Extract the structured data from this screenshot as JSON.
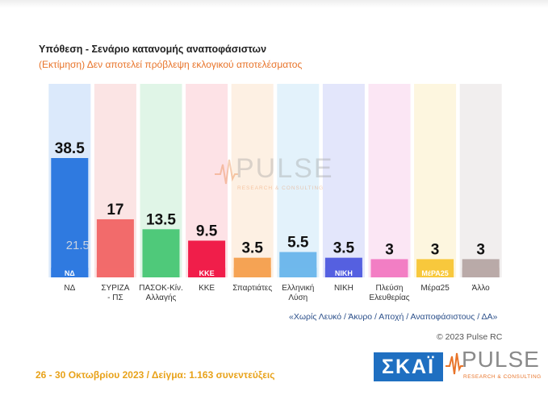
{
  "header": {
    "title": "Υπόθεση - Σενάριο κατανομής αναποφάσιστων",
    "subtitle": "(Εκτίμηση)   Δεν αποτελεί πρόβλεψη εκλογικού αποτελέσματος"
  },
  "chart_data": {
    "type": "bar",
    "categories": [
      "ΝΔ",
      "ΣΥΡΙΖΑ - ΠΣ",
      "ΠΑΣΟΚ-Κίν. Αλλαγής",
      "ΚΚΕ",
      "Σπαρτιάτες",
      "Ελληνική Λύση",
      "ΝΙΚΗ",
      "Πλεύση Ελευθερίας",
      "Μέρα25",
      "Άλλο"
    ],
    "category_lines": [
      [
        "ΝΔ"
      ],
      [
        "ΣΥΡΙΖΑ",
        "- ΠΣ"
      ],
      [
        "ΠΑΣΟΚ-Κίν.",
        "Αλλαγής"
      ],
      [
        "ΚΚΕ"
      ],
      [
        "Σπαρτιάτες"
      ],
      [
        "Ελληνική",
        "Λύση"
      ],
      [
        "ΝΙΚΗ"
      ],
      [
        "Πλεύση",
        "Ελευθερίας"
      ],
      [
        "Μέρα25"
      ],
      [
        "Άλλο"
      ]
    ],
    "values": [
      38.5,
      17,
      13.5,
      9.5,
      3.5,
      5.5,
      3.5,
      3,
      3,
      3
    ],
    "value_labels": [
      "38.5",
      "17",
      "13.5",
      "9.5",
      "3.5",
      "5.5",
      "3.5",
      "3",
      "3",
      "3"
    ],
    "annotations": [
      {
        "category": "ΝΔ",
        "text": "21.5"
      }
    ],
    "ylim": [
      0,
      40
    ],
    "xlabel": "",
    "ylabel": "",
    "colors": {
      "bars": [
        "#2f7ae0",
        "#f26b6b",
        "#4fc97a",
        "#f01e4a",
        "#f5a354",
        "#6fb8ec",
        "#5560e0",
        "#f27ec4",
        "#f8c83c",
        "#b9aaa8"
      ],
      "backgrounds": [
        "#dbe9fb",
        "#fbe4e4",
        "#e0f5e7",
        "#fde2e6",
        "#fdf0e3",
        "#e3f2fb",
        "#e3e6fb",
        "#fbe6f4",
        "#fdf6df",
        "#f1eeee"
      ],
      "value_text": "#111111",
      "annotation_text": "#c9d3e0"
    }
  },
  "watermark": {
    "word": "PULSE",
    "sub": "RESEARCH & CONSULTING"
  },
  "footnote": "«Χωρίς Λευκό / Άκυρο / Αποχή / Αναποφάσιστους / ΔΑ»",
  "copyright": "© 2023 Pulse RC",
  "footer": "26 - 30  Οκτωβρίου  2023  /  Δείγμα:  1.163  συνεντεύξεις",
  "logos": {
    "skai": "ΣΚΑΪ",
    "pulse": "PULSE",
    "pulse_sub": "RESEARCH & CONSULTING",
    "party_logo_texts": [
      "ΝΔ",
      "",
      "",
      "ΚΚΕ",
      "",
      "",
      "ΝΙΚΗ",
      "",
      "ΜέΡΑ25",
      ""
    ]
  }
}
